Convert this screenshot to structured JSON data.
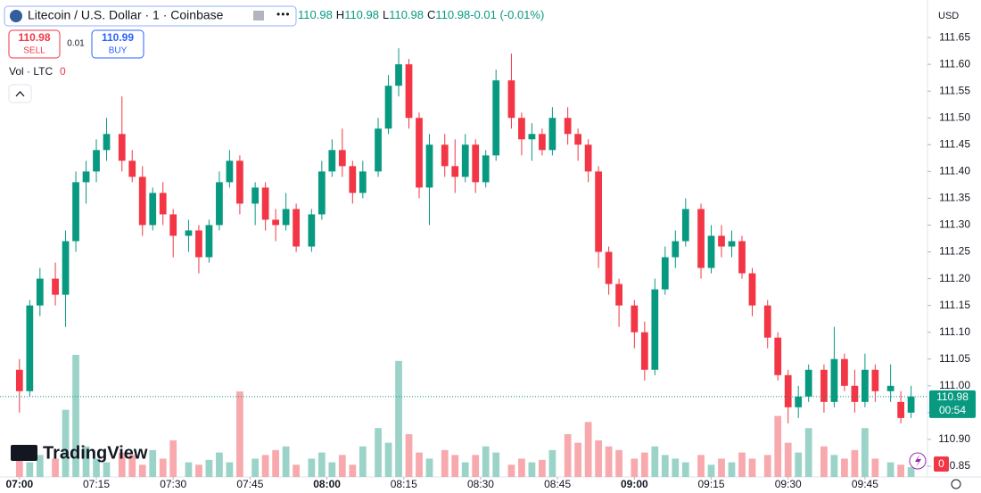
{
  "chart_data": {
    "type": "candlestick",
    "title": "Litecoin / U.S. Dollar · 1 · Coinbase",
    "ohlc_readout": [
      "110.98",
      "H",
      "110.98",
      "L",
      "110.98",
      "C",
      "110.98",
      "-0.01 (-0.01%)"
    ],
    "trade": {
      "sell_price": 110.98,
      "sell_label": "SELL",
      "spread": 0.01,
      "buy_price": 110.99,
      "buy_label": "BUY"
    },
    "volume_legend": "Vol · LTC",
    "volume_legend_value": 0,
    "currency": "USD",
    "last_price": {
      "value": 110.98,
      "label": "110.98"
    },
    "countdown": "00:54",
    "volume_last": 0,
    "brand": "TradingView",
    "up_color": "#089981",
    "down_color": "#f23645",
    "up_volume_color": "#9bd3c9",
    "down_volume_color": "#f7a9ae",
    "grid": false,
    "xlim": [
      -3.8,
      177.2
    ],
    "ylim": [
      110.83,
      111.72
    ],
    "xticks": [
      {
        "value": 0,
        "label": "07:00"
      },
      {
        "value": 15,
        "label": "07:15"
      },
      {
        "value": 30,
        "label": "07:30"
      },
      {
        "value": 45,
        "label": "07:45"
      },
      {
        "value": 60,
        "label": "08:00"
      },
      {
        "value": 75,
        "label": "08:15"
      },
      {
        "value": 90,
        "label": "08:30"
      },
      {
        "value": 105,
        "label": "08:45"
      },
      {
        "value": 120,
        "label": "09:00"
      },
      {
        "value": 135,
        "label": "09:15"
      },
      {
        "value": 150,
        "label": "09:30"
      },
      {
        "value": 165,
        "label": "09:45"
      }
    ],
    "yticks": [
      {
        "value": 110.85,
        "label": "110.85"
      },
      {
        "value": 110.9,
        "label": "110.90"
      },
      {
        "value": 110.95,
        "label": "110.95"
      },
      {
        "value": 111.0,
        "label": "111.00"
      },
      {
        "value": 111.05,
        "label": "111.05"
      },
      {
        "value": 111.1,
        "label": "111.10"
      },
      {
        "value": 111.15,
        "label": "111.15"
      },
      {
        "value": 111.2,
        "label": "111.20"
      },
      {
        "value": 111.25,
        "label": "111.25"
      },
      {
        "value": 111.3,
        "label": "111.30"
      },
      {
        "value": 111.35,
        "label": "111.35"
      },
      {
        "value": 111.4,
        "label": "111.40"
      },
      {
        "value": 111.45,
        "label": "111.45"
      },
      {
        "value": 111.5,
        "label": "111.50"
      },
      {
        "value": 111.55,
        "label": "111.55"
      },
      {
        "value": 111.6,
        "label": "111.60"
      },
      {
        "value": 111.65,
        "label": "111.65"
      }
    ],
    "x": [
      0,
      2,
      4,
      7,
      9,
      11,
      13,
      15,
      17,
      20,
      22,
      24,
      26,
      28,
      30,
      33,
      35,
      37,
      39,
      41,
      43,
      46,
      48,
      50,
      52,
      54,
      57,
      59,
      61,
      63,
      65,
      67,
      70,
      72,
      74,
      76,
      78,
      80,
      83,
      85,
      87,
      89,
      91,
      93,
      96,
      98,
      100,
      102,
      104,
      107,
      109,
      111,
      113,
      115,
      117,
      120,
      122,
      124,
      126,
      128,
      130,
      133,
      135,
      137,
      139,
      141,
      143,
      146,
      148,
      150,
      152,
      154,
      157,
      159,
      161,
      163,
      165,
      167,
      170,
      172,
      174
    ],
    "open": [
      111.03,
      110.99,
      111.15,
      111.2,
      111.17,
      111.27,
      111.38,
      111.4,
      111.44,
      111.47,
      111.42,
      111.39,
      111.3,
      111.36,
      111.32,
      111.28,
      111.29,
      111.24,
      111.3,
      111.38,
      111.42,
      111.34,
      111.37,
      111.31,
      111.3,
      111.33,
      111.26,
      111.32,
      111.4,
      111.44,
      111.41,
      111.36,
      111.4,
      111.48,
      111.56,
      111.6,
      111.5,
      111.37,
      111.45,
      111.41,
      111.39,
      111.45,
      111.38,
      111.43,
      111.57,
      111.5,
      111.46,
      111.47,
      111.44,
      111.5,
      111.47,
      111.45,
      111.4,
      111.25,
      111.19,
      111.15,
      111.1,
      111.03,
      111.18,
      111.24,
      111.27,
      111.33,
      111.22,
      111.28,
      111.26,
      111.27,
      111.21,
      111.15,
      111.09,
      111.02,
      110.96,
      110.98,
      111.03,
      110.97,
      111.05,
      111.0,
      110.97,
      111.03,
      110.99,
      110.97,
      110.95
    ],
    "high": [
      111.05,
      111.16,
      111.22,
      111.23,
      111.29,
      111.4,
      111.42,
      111.46,
      111.5,
      111.54,
      111.44,
      111.41,
      111.37,
      111.38,
      111.33,
      111.31,
      111.3,
      111.31,
      111.4,
      111.44,
      111.43,
      111.38,
      111.38,
      111.33,
      111.36,
      111.34,
      111.33,
      111.42,
      111.46,
      111.48,
      111.42,
      111.42,
      111.5,
      111.58,
      111.63,
      111.61,
      111.51,
      111.47,
      111.47,
      111.46,
      111.47,
      111.46,
      111.44,
      111.59,
      111.62,
      111.51,
      111.49,
      111.48,
      111.52,
      111.52,
      111.48,
      111.46,
      111.41,
      111.26,
      111.2,
      111.16,
      111.12,
      111.2,
      111.26,
      111.29,
      111.35,
      111.34,
      111.3,
      111.3,
      111.29,
      111.28,
      111.22,
      111.16,
      111.1,
      111.03,
      111.0,
      111.04,
      111.04,
      111.11,
      111.06,
      111.03,
      111.06,
      111.04,
      111.04,
      110.99,
      111.0
    ],
    "low": [
      110.95,
      110.98,
      111.13,
      111.15,
      111.11,
      111.25,
      111.34,
      111.38,
      111.42,
      111.4,
      111.38,
      111.28,
      111.29,
      111.3,
      111.24,
      111.25,
      111.21,
      111.23,
      111.29,
      111.37,
      111.32,
      111.3,
      111.29,
      111.27,
      111.29,
      111.25,
      111.25,
      111.31,
      111.39,
      111.39,
      111.34,
      111.35,
      111.39,
      111.47,
      111.54,
      111.48,
      111.35,
      111.3,
      111.39,
      111.36,
      111.38,
      111.36,
      111.37,
      111.42,
      111.48,
      111.43,
      111.42,
      111.43,
      111.43,
      111.45,
      111.42,
      111.38,
      111.22,
      111.17,
      111.11,
      111.07,
      111.01,
      111.02,
      111.17,
      111.22,
      111.26,
      111.2,
      111.21,
      111.24,
      111.24,
      111.2,
      111.13,
      111.07,
      111.01,
      110.93,
      110.94,
      110.97,
      110.95,
      110.96,
      110.99,
      110.95,
      110.96,
      110.97,
      110.97,
      110.93,
      110.94
    ],
    "close": [
      110.99,
      111.15,
      111.2,
      111.17,
      111.27,
      111.38,
      111.4,
      111.44,
      111.47,
      111.42,
      111.39,
      111.3,
      111.36,
      111.32,
      111.28,
      111.29,
      111.24,
      111.3,
      111.38,
      111.42,
      111.34,
      111.37,
      111.31,
      111.3,
      111.33,
      111.26,
      111.32,
      111.4,
      111.44,
      111.41,
      111.36,
      111.4,
      111.48,
      111.56,
      111.6,
      111.5,
      111.37,
      111.45,
      111.41,
      111.39,
      111.45,
      111.38,
      111.43,
      111.57,
      111.5,
      111.46,
      111.47,
      111.44,
      111.5,
      111.47,
      111.45,
      111.4,
      111.25,
      111.19,
      111.15,
      111.1,
      111.03,
      111.18,
      111.24,
      111.27,
      111.33,
      111.22,
      111.28,
      111.26,
      111.27,
      111.21,
      111.15,
      111.09,
      111.02,
      110.96,
      110.98,
      111.03,
      110.97,
      111.05,
      111.0,
      110.97,
      111.03,
      110.99,
      111.0,
      110.94,
      110.98
    ],
    "volume": [
      20,
      12,
      18,
      15,
      55,
      100,
      25,
      15,
      12,
      20,
      18,
      10,
      22,
      15,
      30,
      12,
      10,
      14,
      20,
      12,
      70,
      15,
      18,
      22,
      25,
      10,
      15,
      20,
      12,
      18,
      10,
      25,
      40,
      28,
      95,
      35,
      20,
      15,
      22,
      18,
      12,
      18,
      25,
      20,
      10,
      15,
      12,
      14,
      22,
      35,
      28,
      45,
      30,
      25,
      22,
      15,
      20,
      25,
      18,
      15,
      12,
      18,
      10,
      15,
      12,
      20,
      15,
      18,
      50,
      28,
      20,
      40,
      25,
      18,
      15,
      22,
      40,
      15,
      12,
      10,
      8
    ]
  }
}
